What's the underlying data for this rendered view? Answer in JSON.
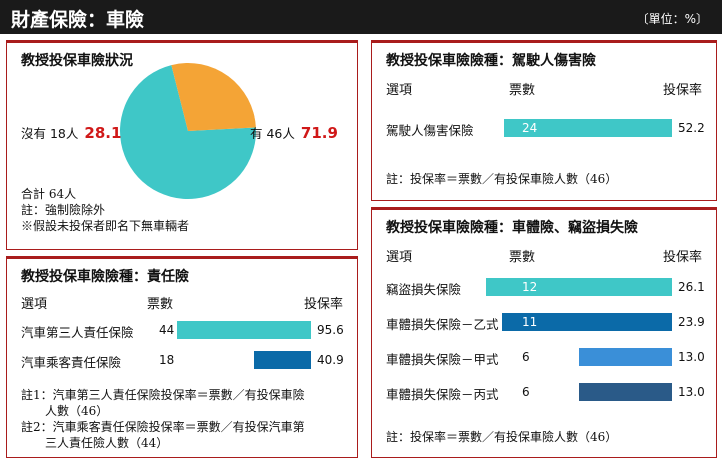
{
  "header": {
    "title": "財產保險：車險",
    "unit": "〔單位：%〕"
  },
  "panels": {
    "status": {
      "title": "教授投保車險狀況",
      "no": {
        "label": "沒有 18人",
        "value": "28.1"
      },
      "yes": {
        "label": "有 46人",
        "value": "71.9"
      },
      "notes": [
        "合計 64人",
        "註：強制險除外",
        "※假設未投保者即名下無車輛者"
      ]
    },
    "liability": {
      "title": "教授投保車險險種：責任險",
      "cols": {
        "item": "選項",
        "count": "票數",
        "rate": "投保率"
      },
      "notes": [
        "註1：汽車第三人責任保險投保率＝票數／有投保車險",
        "　　人數（46）",
        "註2：汽車乘客責任保險投保率＝票數／有投保汽車第",
        "　　三人責任險人數（44）"
      ]
    },
    "driver": {
      "title": "教授投保車險險種：駕駛人傷害險",
      "cols": {
        "item": "選項",
        "count": "票數",
        "rate": "投保率"
      },
      "notes": [
        "註：投保率＝票數／有投保車險人數（46）"
      ]
    },
    "body": {
      "title": "教授投保車險險種：車體險、竊盜損失險",
      "cols": {
        "item": "選項",
        "count": "票數",
        "rate": "投保率"
      },
      "notes": [
        "註：投保率＝票數／有投保車險人數（46）"
      ]
    }
  },
  "chart_data": [
    {
      "type": "pie",
      "title": "教授投保車險狀況",
      "slices": [
        {
          "label": "有 46人",
          "count": 46,
          "value": 71.9,
          "color": "#3fc7c7"
        },
        {
          "label": "沒有 18人",
          "count": 18,
          "value": 28.1,
          "color": "#f4a436"
        }
      ]
    },
    {
      "type": "bar",
      "title": "教授投保車險險種：責任險",
      "categories": [
        "汽車第三人責任保險",
        "汽車乘客責任保險"
      ],
      "counts": [
        "44",
        "18"
      ],
      "values": [
        95.6,
        40.9
      ],
      "rates": [
        "95.6",
        "40.9"
      ],
      "colors": [
        "#3fc7c7",
        "#0b6aa8"
      ]
    },
    {
      "type": "bar",
      "title": "教授投保車險險種：駕駛人傷害險",
      "categories": [
        "駕駛人傷害保險"
      ],
      "counts": [
        "24"
      ],
      "values": [
        52.2
      ],
      "rates": [
        "52.2"
      ],
      "colors": [
        "#3fc7c7"
      ]
    },
    {
      "type": "bar",
      "title": "教授投保車險險種：車體險、竊盜損失險",
      "categories": [
        "竊盜損失保險",
        "車體損失保險－乙式",
        "車體損失保險－甲式",
        "車體損失保險－丙式"
      ],
      "counts": [
        "12",
        "11",
        "6",
        "6"
      ],
      "values": [
        26.1,
        23.9,
        13.0,
        13.0
      ],
      "rates": [
        "26.1",
        "23.9",
        "13.0",
        "13.0"
      ],
      "colors": [
        "#3fc7c7",
        "#0b6aa8",
        "#3a8fd8",
        "#2a5a88"
      ]
    }
  ]
}
